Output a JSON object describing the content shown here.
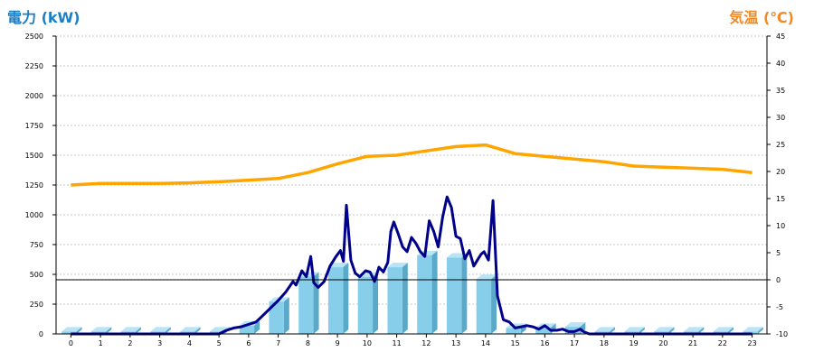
{
  "chart_data": {
    "type": "bar",
    "left_axis_title": "電力 (kW)",
    "right_axis_title": "気温 (℃)",
    "left_axis": {
      "min": 0,
      "max": 2500,
      "ticks": [
        "0",
        "250",
        "500",
        "750",
        "1000",
        "1250",
        "1500",
        "1750",
        "2000",
        "2250",
        "2500"
      ]
    },
    "right_axis": {
      "min": -10,
      "max": 45,
      "ticks": [
        "-10",
        "-5",
        "0",
        "5",
        "10",
        "15",
        "20",
        "25",
        "30",
        "35",
        "40",
        "45"
      ]
    },
    "categories": [
      "0",
      "1",
      "2",
      "3",
      "4",
      "5",
      "6",
      "7",
      "8",
      "9",
      "10",
      "11",
      "12",
      "13",
      "14",
      "15",
      "16",
      "17",
      "18",
      "19",
      "20",
      "21",
      "22",
      "23"
    ],
    "series": [
      {
        "kind": "bar",
        "axis": "left",
        "values": [
          20,
          20,
          20,
          20,
          20,
          20,
          70,
          270,
          480,
          560,
          480,
          560,
          660,
          640,
          460,
          50,
          50,
          60,
          20,
          20,
          20,
          20,
          20,
          20
        ]
      },
      {
        "kind": "line",
        "axis": "left",
        "x": [
          0,
          0.5,
          1,
          1.5,
          2,
          2.5,
          3,
          3.5,
          4,
          4.5,
          5,
          5.25,
          5.5,
          5.75,
          6,
          6.25,
          6.5,
          6.75,
          7,
          7.25,
          7.5,
          7.6,
          7.8,
          7.95,
          8.1,
          8.2,
          8.35,
          8.55,
          8.75,
          8.95,
          9.1,
          9.2,
          9.3,
          9.45,
          9.6,
          9.75,
          9.95,
          10.1,
          10.25,
          10.4,
          10.55,
          10.7,
          10.8,
          10.9,
          11.05,
          11.2,
          11.35,
          11.5,
          11.65,
          11.8,
          11.95,
          12.1,
          12.25,
          12.4,
          12.55,
          12.7,
          12.85,
          13,
          13.15,
          13.3,
          13.45,
          13.6,
          13.75,
          13.85,
          13.95,
          14.1,
          14.25,
          14.4,
          14.6,
          14.8,
          15,
          15.2,
          15.4,
          15.6,
          15.8,
          16,
          16.2,
          16.4,
          16.6,
          16.8,
          17,
          17.1,
          17.2,
          17.3,
          17.5,
          18,
          18.5,
          19,
          19.5,
          20,
          21,
          22,
          23
        ],
        "values": [
          0,
          0,
          0,
          0,
          0,
          0,
          0,
          0,
          0,
          0,
          0,
          30,
          50,
          60,
          80,
          100,
          160,
          220,
          280,
          350,
          440,
          410,
          530,
          480,
          650,
          430,
          390,
          440,
          570,
          650,
          700,
          610,
          1080,
          620,
          510,
          480,
          530,
          520,
          440,
          560,
          520,
          600,
          860,
          940,
          840,
          730,
          690,
          810,
          760,
          690,
          650,
          950,
          860,
          730,
          980,
          1150,
          1060,
          820,
          800,
          630,
          700,
          570,
          630,
          670,
          690,
          620,
          1120,
          320,
          120,
          100,
          50,
          60,
          70,
          60,
          40,
          70,
          30,
          30,
          40,
          20,
          20,
          30,
          40,
          20,
          0,
          0,
          0,
          0,
          0,
          0,
          0,
          0,
          0
        ]
      },
      {
        "kind": "line",
        "axis": "right",
        "x": [
          0,
          1,
          2,
          3,
          4,
          5,
          6,
          7,
          8,
          9,
          10,
          11,
          12,
          13,
          14,
          15,
          16,
          17,
          18,
          19,
          20,
          21,
          22,
          23
        ],
        "values": [
          17.5,
          17.8,
          17.8,
          17.8,
          17.9,
          18.1,
          18.4,
          18.7,
          19.8,
          21.4,
          22.8,
          23.0,
          23.8,
          24.6,
          24.9,
          23.3,
          22.8,
          22.3,
          21.8,
          21.0,
          20.8,
          20.6,
          20.4,
          19.8
        ]
      }
    ],
    "colors": {
      "bar_front": "#87CEEB",
      "bar_side": "#5AA9C8",
      "bar_top": "#B8E4F5",
      "power_line": "#00008B",
      "temperature_line": "#FFA500",
      "left_title": "#1C7FC4",
      "right_title": "#F08A24",
      "grid": "#C8C8C8",
      "zero_line": "#000000"
    }
  }
}
